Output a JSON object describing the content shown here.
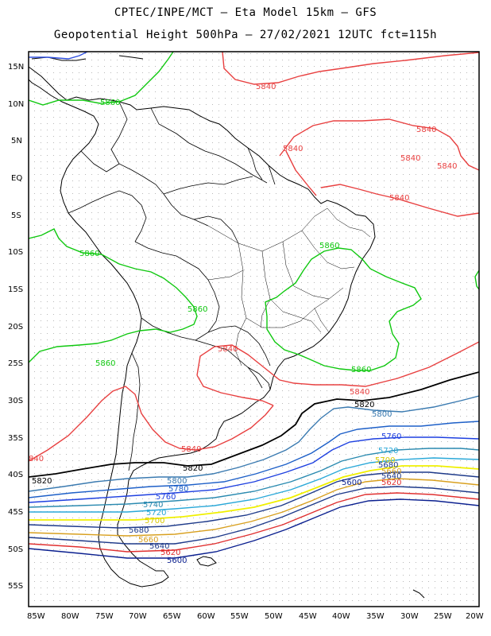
{
  "header": {
    "line1": "CPTEC/INPE/MCT –  Eta Model 15km – GFS",
    "line2": "Geopotential Height 500hPa – 27/02/2021 12UTC fct=115h"
  },
  "axes": {
    "lat_labels": [
      "15N",
      "10N",
      "5N",
      "EQ",
      "5S",
      "10S",
      "15S",
      "20S",
      "25S",
      "30S",
      "35S",
      "40S",
      "45S",
      "50S",
      "55S"
    ],
    "lon_labels": [
      "85W",
      "80W",
      "75W",
      "70W",
      "65W",
      "60W",
      "55W",
      "50W",
      "45W",
      "40W",
      "35W",
      "30W",
      "25W",
      "20W"
    ]
  },
  "colors": {
    "c5600": "#0a1f8f",
    "c5620_lo": "#e03030",
    "c5660": "#d8a020",
    "c5700": "#f0f000",
    "c5720": "#2aa8d8",
    "c5740": "#2a8ab0",
    "c5760": "#1e40e0",
    "c5780": "#1e60c8",
    "c5800": "#3a7ab0",
    "c5820": "#000000",
    "c5840": "#e84040",
    "c5860": "#10c810",
    "c5880": "#3050e0"
  },
  "contours": [
    {
      "level": "5840",
      "labels": [
        "5840",
        "5840",
        "5840",
        "5840",
        "5840",
        "5840",
        "5840",
        "5840",
        "840"
      ]
    },
    {
      "level": "5860",
      "labels": [
        "5860",
        "5860",
        "5860",
        "5860",
        "5860"
      ]
    },
    {
      "level": "5820",
      "labels": [
        "5820",
        "5820",
        "5820"
      ]
    },
    {
      "level": "5800",
      "labels": [
        "5800",
        "5800"
      ]
    },
    {
      "level": "5780",
      "labels": [
        "5780"
      ]
    },
    {
      "level": "5760",
      "labels": [
        "5760",
        "5760"
      ]
    },
    {
      "level": "5740",
      "labels": [
        "5740"
      ]
    },
    {
      "level": "5720",
      "labels": [
        "5720",
        "5720"
      ]
    },
    {
      "level": "5700",
      "labels": [
        "5700",
        "5700"
      ]
    },
    {
      "level": "5680",
      "labels": [
        "5680",
        "5680"
      ]
    },
    {
      "level": "5660",
      "labels": [
        "5660"
      ]
    },
    {
      "level": "5640",
      "labels": [
        "5640",
        "5640"
      ]
    },
    {
      "level": "5620",
      "labels": [
        "5620",
        "5620"
      ]
    },
    {
      "level": "5600",
      "labels": [
        "5600",
        "5600"
      ]
    }
  ]
}
